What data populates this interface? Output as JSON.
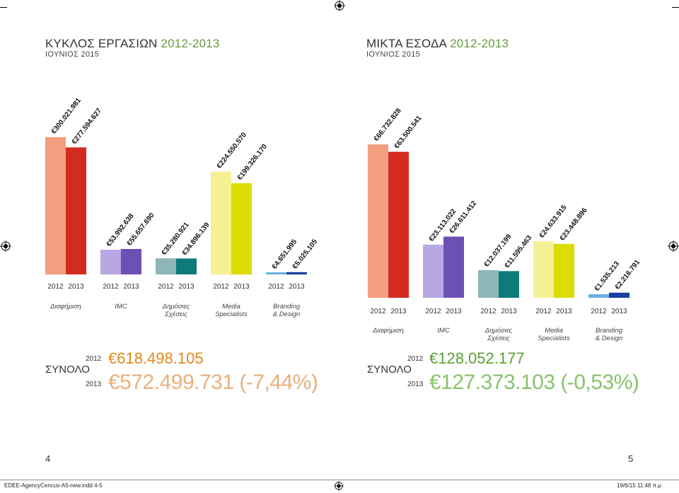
{
  "pages": [
    {
      "title_main": "ΚΥΚΛΟΣ ΕΡΓΑΣΙΩΝ",
      "title_years": "2012-2013",
      "subtitle": "ΙΟΥΝΙΟΣ 2015",
      "total_label": "ΣΥΝΟΛΟ",
      "total_2012_year": "2012",
      "total_2012_value": "€618.498.105",
      "total_2013_year": "2013",
      "total_2013_value": "€572.499.731 (-7,44%)",
      "page_number": "4"
    },
    {
      "title_main": "ΜΙΚΤΑ ΕΣΟΔΑ",
      "title_years": "2012-2013",
      "subtitle": "ΙΟΥΝΙΟΣ 2015",
      "total_label": "ΣΥΝΟΛΟ",
      "total_2012_year": "2012",
      "total_2012_value": "€128.052.177",
      "total_2013_year": "2013",
      "total_2013_value": "€127.373.103 (-0,53%)",
      "page_number": "5"
    }
  ],
  "colors": {
    "dark_gray": "#333333",
    "total_2012_left": "#e08a1a",
    "total_2013_left": "#eab07a",
    "total_2012_right": "#5aa036",
    "total_2013_right": "#86c46a",
    "title_year": "#6a9a3c"
  },
  "footer": {
    "file": "EDEE-AgencyCencus-A5-new.indd   4-5",
    "timestamp": "19/6/15   11:48 π.μ."
  },
  "chart_data": [
    {
      "type": "bar",
      "title": "ΚΥΚΛΟΣ ΕΡΓΑΣΙΩΝ 2012-2013",
      "categories": [
        "Διαφήμιση",
        "IMC",
        "Δημόσιες Σχέσεις",
        "Media Specialists",
        "Branding & Design"
      ],
      "series": [
        {
          "name": "2012",
          "values": [
            300021981,
            53992638,
            35280921,
            224550570,
            4651995
          ],
          "labels": [
            "€300.021.981",
            "€53.992.638",
            "€35.280.921",
            "€224.550.570",
            "€4.651.995"
          ],
          "colors": [
            "#f29e80",
            "#b7a7e2",
            "#8fb6b6",
            "#f5f096",
            "#6aafde"
          ]
        },
        {
          "name": "2013",
          "values": [
            277594627,
            55657690,
            34896139,
            199326170,
            5025105
          ],
          "labels": [
            "€277.594.627",
            "€55.657.690",
            "€34.896.139",
            "€199.326.170",
            "€5.025.105"
          ],
          "colors": [
            "#d42b20",
            "#6d50b3",
            "#0e7b7b",
            "#dcdc00",
            "#1a3fa0"
          ]
        }
      ],
      "ylim": [
        0,
        340000000
      ]
    },
    {
      "type": "bar",
      "title": "ΜΙΚΤΑ ΕΣΟΔΑ 2012-2013",
      "categories": [
        "Διαφήμιση",
        "IMC",
        "Δημόσιες Σχέσεις",
        "Media Specialists",
        "Branding & Design"
      ],
      "series": [
        {
          "name": "2012",
          "values": [
            66732828,
            23113022,
            12037199,
            24633915,
            1535213
          ],
          "labels": [
            "€66.732.828",
            "€23.113.022",
            "€12.037.199",
            "€24.633.915",
            "€1.535.213"
          ],
          "colors": [
            "#f29e80",
            "#b7a7e2",
            "#8fb6b6",
            "#f5f096",
            "#6aafde"
          ]
        },
        {
          "name": "2013",
          "values": [
            63500541,
            26611412,
            11595463,
            23448896,
            2216791
          ],
          "labels": [
            "€63.500.541",
            "€26.611.412",
            "€11.595.463",
            "€23.448.896",
            "€2.216.791"
          ],
          "colors": [
            "#d42b20",
            "#6d50b3",
            "#0e7b7b",
            "#dcdc00",
            "#1a3fa0"
          ]
        }
      ],
      "ylim": [
        0,
        80000000
      ]
    }
  ]
}
